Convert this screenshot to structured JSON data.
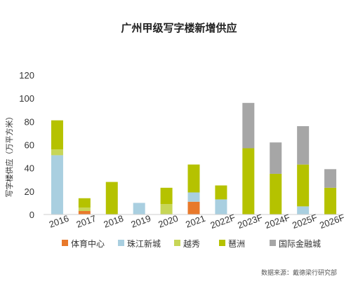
{
  "chart_data": {
    "type": "bar",
    "stacked": true,
    "title": "广州甲级写字楼新增供应",
    "ylabel": "写字楼供应（万平方米）",
    "xlabel": "",
    "ylim": [
      0,
      120
    ],
    "yticks": [
      0,
      20,
      40,
      60,
      80,
      100,
      120
    ],
    "grid": false,
    "legend_position": "bottom",
    "categories": [
      "2016",
      "2017",
      "2018",
      "2019",
      "2020",
      "2021",
      "2022F",
      "2023F",
      "2024F",
      "2025F",
      "2026F"
    ],
    "series": [
      {
        "name": "体育中心",
        "color": "#E8792B",
        "values": [
          0,
          3,
          0,
          0,
          0,
          11,
          0,
          0,
          0,
          0,
          0
        ]
      },
      {
        "name": "珠江新城",
        "color": "#A9CFE0",
        "values": [
          51,
          0,
          0,
          10,
          0,
          8,
          13,
          0,
          0,
          7,
          0
        ]
      },
      {
        "name": "越秀",
        "color": "#C7D657",
        "values": [
          5,
          3,
          0,
          0,
          9,
          0,
          0,
          0,
          0,
          0,
          0
        ]
      },
      {
        "name": "琶洲",
        "color": "#B5C200",
        "values": [
          25,
          8,
          28,
          0,
          14,
          24,
          12,
          57,
          35,
          36,
          23
        ]
      },
      {
        "name": "国际金融城",
        "color": "#A6A6A6",
        "values": [
          0,
          0,
          0,
          0,
          0,
          0,
          0,
          39,
          27,
          33,
          16
        ]
      }
    ],
    "source": "数据来源：戴德梁行研究部"
  }
}
